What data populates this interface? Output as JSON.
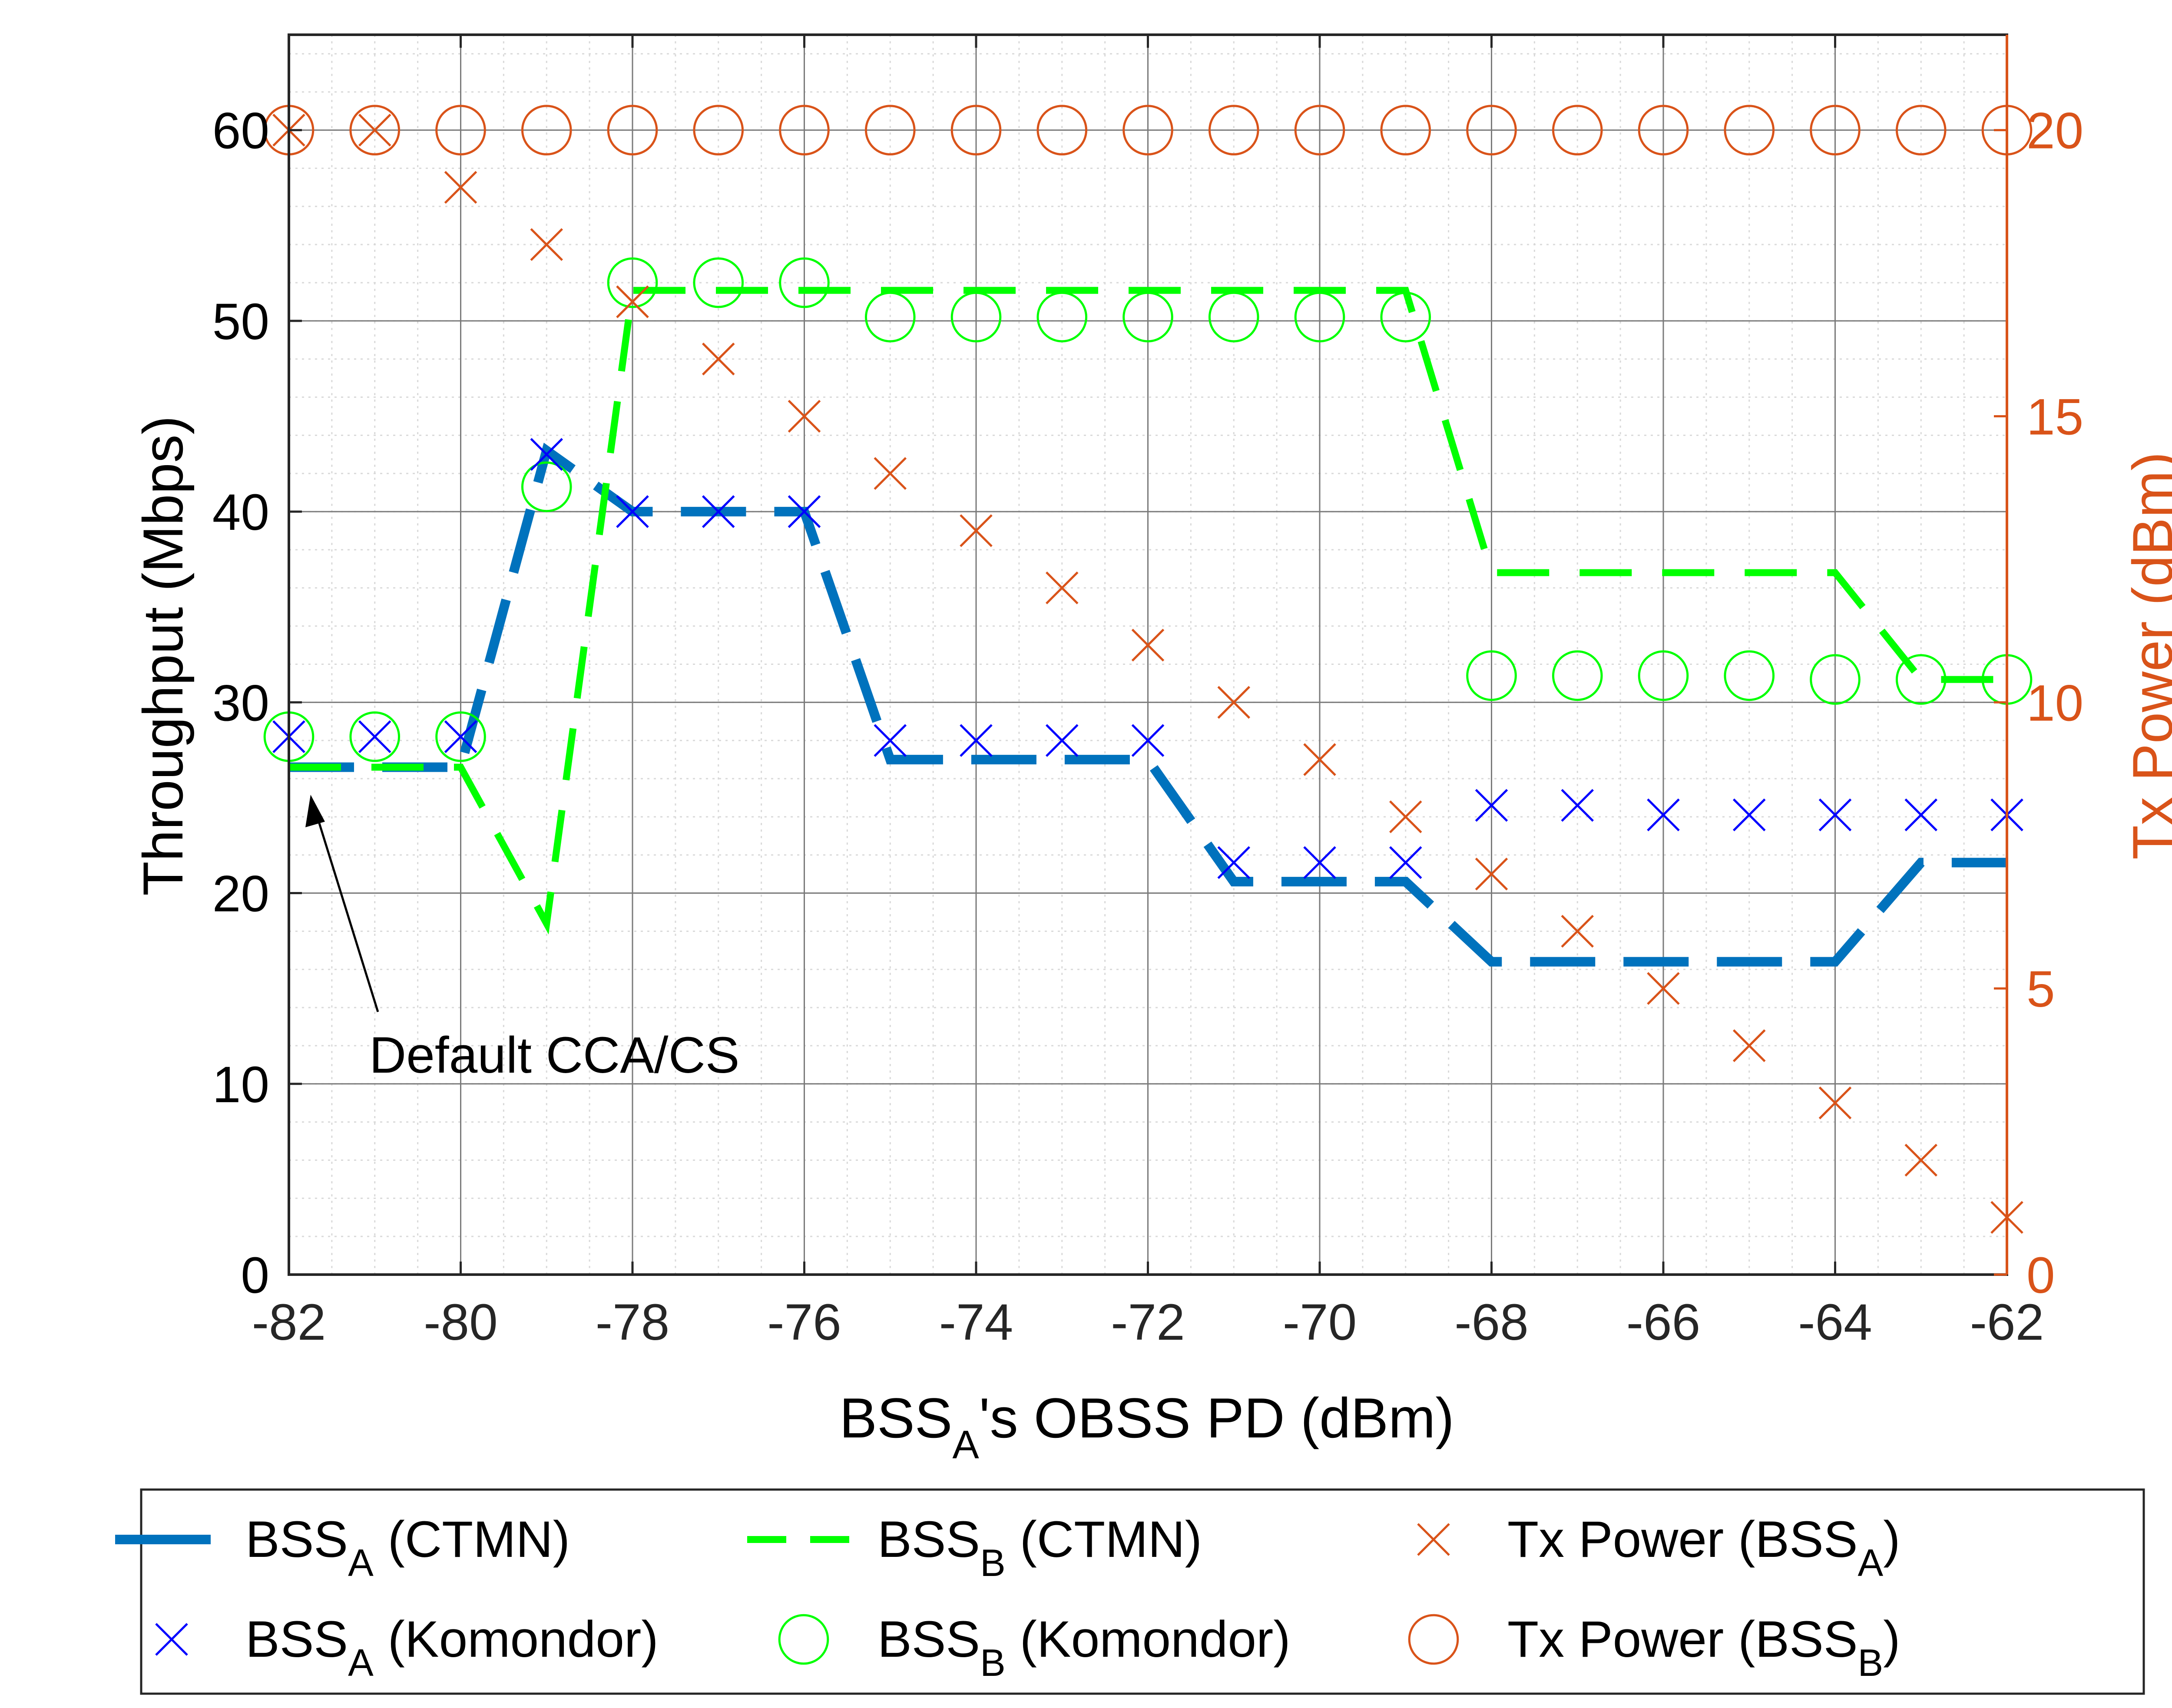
{
  "chart_data": {
    "type": "line",
    "xlabel": "BSS",
    "xlabel_sub": "A",
    "xlabel_rest": "'s OBSS PD (dBm)",
    "ylabel_left": "Throughput (Mbps)",
    "ylabel_right": "Tx Power (dBm)",
    "xlim": [
      -82,
      -62
    ],
    "ylim_left": [
      0,
      65
    ],
    "ylim_right": [
      0,
      21.6667
    ],
    "x_ticks": [
      "-82",
      "-80",
      "-78",
      "-76",
      "-74",
      "-72",
      "-70",
      "-68",
      "-66",
      "-64",
      "-62"
    ],
    "y_left_ticks": [
      "0",
      "10",
      "20",
      "30",
      "40",
      "50",
      "60"
    ],
    "y_right_ticks": [
      "0",
      "5",
      "10",
      "15",
      "20"
    ],
    "grid": true,
    "minor_grid": true,
    "x": [
      -82,
      -81,
      -80,
      -79,
      -78,
      -77,
      -76,
      -75,
      -74,
      -73,
      -72,
      -71,
      -70,
      -69,
      -68,
      -67,
      -66,
      -65,
      -64,
      -63,
      -62
    ],
    "series": [
      {
        "name": "BSS_A (CTMN)",
        "legend_main": "BSS",
        "legend_sub": "A",
        "legend_rest": " (CTMN)",
        "axis": "left",
        "style": "dashed-line",
        "color": "#0072BD",
        "values": [
          26.6,
          26.6,
          26.6,
          43.2,
          40.0,
          40.0,
          40.0,
          27.0,
          27.0,
          27.0,
          27.0,
          20.6,
          20.6,
          20.6,
          16.4,
          16.4,
          16.4,
          16.4,
          16.4,
          21.6,
          21.6
        ]
      },
      {
        "name": "BSS_B (CTMN)",
        "legend_main": "BSS",
        "legend_sub": "B",
        "legend_rest": " (CTMN)",
        "axis": "left",
        "style": "dashed-line",
        "color": "#00FF00",
        "values": [
          26.6,
          26.6,
          26.6,
          18.4,
          51.6,
          51.6,
          51.6,
          51.6,
          51.6,
          51.6,
          51.6,
          51.6,
          51.6,
          51.6,
          36.8,
          36.8,
          36.8,
          36.8,
          36.8,
          31.2,
          31.2
        ]
      },
      {
        "name": "Tx Power (BSS_A)",
        "legend_main": "Tx Power (BSS",
        "legend_sub": "A",
        "legend_rest": ")",
        "axis": "right",
        "style": "x-marker",
        "color": "#D95319",
        "values": [
          20,
          20,
          19,
          18,
          17,
          16,
          15,
          14,
          13,
          12,
          11,
          10,
          9,
          8,
          7,
          6,
          5,
          4,
          3,
          2,
          1
        ]
      },
      {
        "name": "BSS_A (Komondor)",
        "legend_main": "BSS",
        "legend_sub": "A",
        "legend_rest": " (Komondor)",
        "axis": "left",
        "style": "x-marker",
        "color": "#0000FF",
        "values": [
          28.2,
          28.2,
          28.2,
          43.0,
          40.0,
          40.0,
          40.0,
          28.0,
          28.0,
          28.0,
          28.0,
          21.6,
          21.6,
          21.6,
          24.6,
          24.6,
          24.1,
          24.1,
          24.1,
          24.1,
          24.1
        ]
      },
      {
        "name": "BSS_B (Komondor)",
        "legend_main": "BSS",
        "legend_sub": "B",
        "legend_rest": " (Komondor)",
        "axis": "left",
        "style": "o-marker",
        "color": "#00FF00",
        "values": [
          28.2,
          28.2,
          28.2,
          41.3,
          52.0,
          52.0,
          52.0,
          50.2,
          50.2,
          50.2,
          50.2,
          50.2,
          50.2,
          50.2,
          31.4,
          31.4,
          31.4,
          31.4,
          31.2,
          31.2,
          31.2
        ]
      },
      {
        "name": "Tx Power (BSS_B)",
        "legend_main": "Tx Power (BSS",
        "legend_sub": "B",
        "legend_rest": ")",
        "axis": "right",
        "style": "o-marker",
        "color": "#D95319",
        "values": [
          20,
          20,
          20,
          20,
          20,
          20,
          20,
          20,
          20,
          20,
          20,
          20,
          20,
          20,
          20,
          20,
          20,
          20,
          20,
          20,
          20
        ]
      }
    ],
    "annotation": {
      "text": "Default CCA/CS",
      "target_x": -82,
      "target_y": 26.6
    },
    "legend_placement": "bottom",
    "colors": {
      "left_axis": "#000000",
      "right_axis": "#D95319",
      "grid": "#BDBDBD"
    }
  }
}
